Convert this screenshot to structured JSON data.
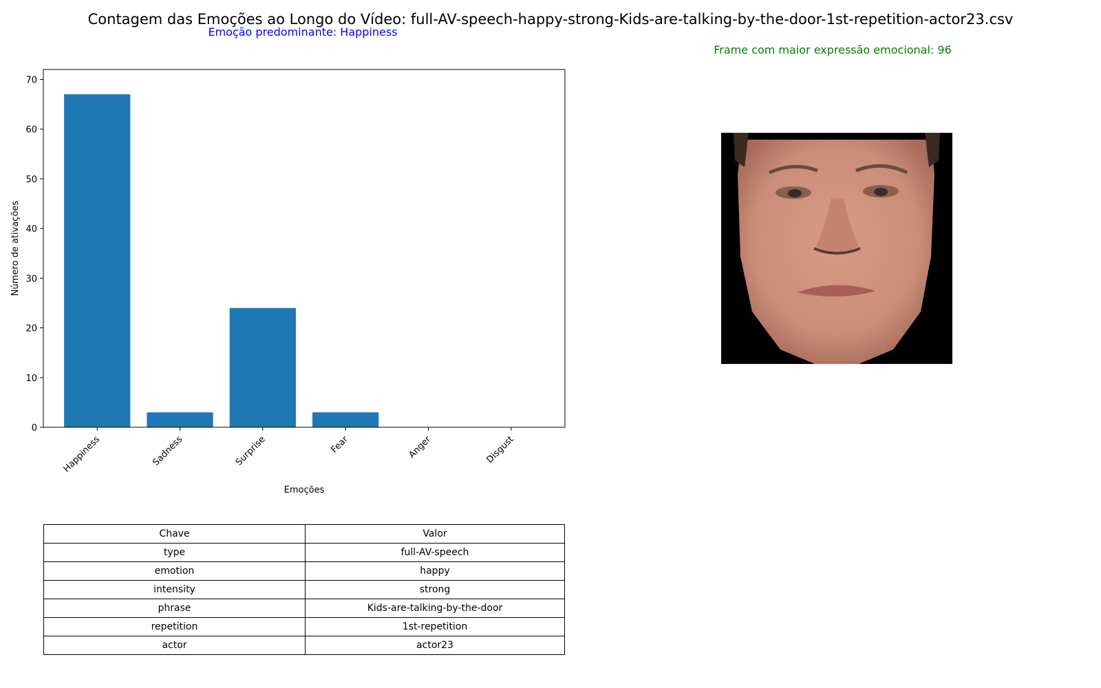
{
  "figure": {
    "title": "Contagem das Emoções ao Longo do Vídeo: full-AV-speech-happy-strong-Kids-are-talking-by-the-door-1st-repetition-actor23.csv",
    "predominant_label": "Emoção predominante: Happiness",
    "max_frame_label": "Frame com maior expressão emocional: 96"
  },
  "chart_data": {
    "type": "bar",
    "categories": [
      "Happiness",
      "Sadness",
      "Surprise",
      "Fear",
      "Anger",
      "Disgust"
    ],
    "values": [
      67,
      3,
      24,
      3,
      0,
      0
    ],
    "xlabel": "Emoções",
    "ylabel": "Número de ativações",
    "ylim": [
      0,
      70
    ],
    "yticks": [
      0,
      10,
      20,
      30,
      40,
      50,
      60,
      70
    ],
    "bar_color": "#1f77b4",
    "grid": false
  },
  "table": {
    "header": [
      "Chave",
      "Valor"
    ],
    "rows": [
      [
        "type",
        "full-AV-speech"
      ],
      [
        "emotion",
        "happy"
      ],
      [
        "intensity",
        "strong"
      ],
      [
        "phrase",
        "Kids-are-talking-by-the-door"
      ],
      [
        "repetition",
        "1st-repetition"
      ],
      [
        "actor",
        "actor23"
      ]
    ]
  },
  "image": {
    "face_icon": "face-photo",
    "skin_color": "#c98d79",
    "background_color": "#000000"
  }
}
